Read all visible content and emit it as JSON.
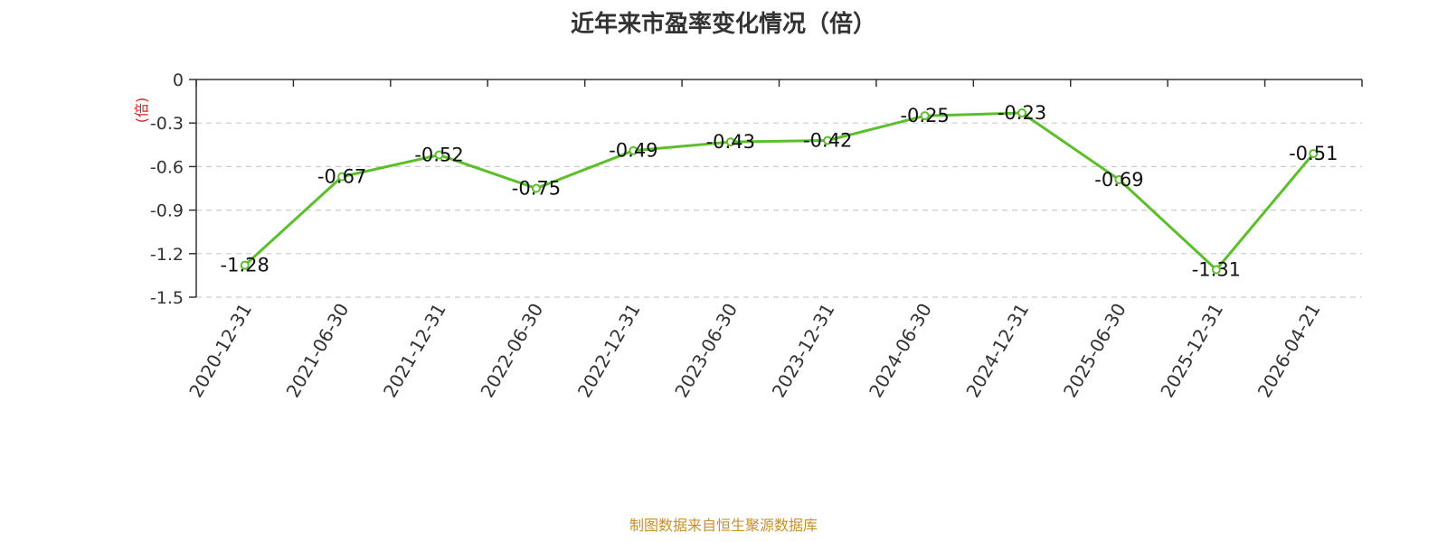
{
  "chart_data": {
    "type": "line",
    "title": "近年来市盈率变化情况（倍）",
    "ylabel": "(倍)",
    "xlabel": "",
    "categories": [
      "2020-12-31",
      "2021-06-30",
      "2021-12-31",
      "2022-06-30",
      "2022-12-31",
      "2023-06-30",
      "2023-12-31",
      "2024-06-30",
      "2024-12-31",
      "2025-06-30",
      "2025-12-31",
      "2026-04-21"
    ],
    "values": [
      -1.28,
      -0.67,
      -0.52,
      -0.75,
      -0.49,
      -0.43,
      -0.42,
      -0.25,
      -0.23,
      -0.69,
      -1.31,
      -0.51
    ],
    "data_labels": [
      "-1.28",
      "-0.67",
      "-0.52",
      "-0.75",
      "-0.49",
      "-0.43",
      "-0.42",
      "-0.25",
      "-0.23",
      "-0.69",
      "-1.31",
      "-0.51"
    ],
    "ylim": [
      -1.5,
      0
    ],
    "yticks": [
      0,
      -0.3,
      -0.6,
      -0.9,
      -1.2,
      -1.5
    ],
    "ytick_labels": [
      "0",
      "-0.3",
      "-0.6",
      "-0.9",
      "-1.2",
      "-1.5"
    ],
    "grid": true,
    "legend": "none"
  },
  "footer": {
    "source": "制图数据来自恒生聚源数据库"
  },
  "colors": {
    "line": "#5bbf2a",
    "ylabel": "#e02020",
    "footer": "#c8902a",
    "grid": "#cccccc",
    "axis": "#333333"
  }
}
